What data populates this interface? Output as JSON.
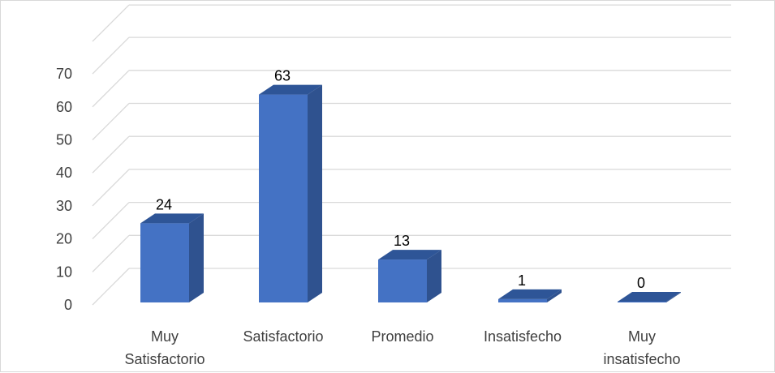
{
  "chart_data": {
    "type": "bar",
    "three_d": true,
    "categories": [
      [
        "Muy",
        "Satisfactorio"
      ],
      [
        "Satisfactorio"
      ],
      [
        "Promedio"
      ],
      [
        "Insatisfecho"
      ],
      [
        "Muy",
        "insatisfecho"
      ]
    ],
    "values": [
      24,
      63,
      13,
      1,
      0
    ],
    "data_labels": [
      "24",
      "63",
      "13",
      "1",
      "0"
    ],
    "y_ticks": [
      "0",
      "10",
      "20",
      "30",
      "40",
      "50",
      "60",
      "70"
    ],
    "ylim": [
      0,
      70
    ],
    "grid": true,
    "legend": "none",
    "colors": {
      "bar_front": "#4472c4",
      "bar_side": "#2f528f",
      "bar_top": "#2e5597",
      "grid": "#d9d9d9"
    }
  }
}
